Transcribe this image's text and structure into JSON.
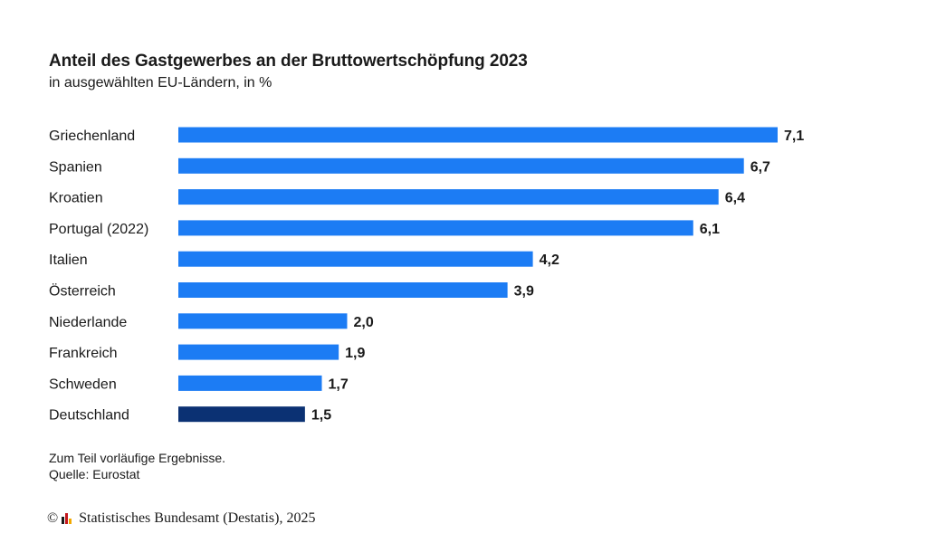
{
  "title": "Anteil des Gastgewerbes an der Bruttowertschöpfung 2023",
  "subtitle": "in ausgewählten EU-Ländern, in %",
  "chart_data": {
    "type": "bar",
    "orientation": "horizontal",
    "title": "Anteil des Gastgewerbes an der Bruttowertschöpfung 2023",
    "subtitle": "in ausgewählten EU-Ländern, in %",
    "categories": [
      "Griechenland",
      "Spanien",
      "Kroatien",
      "Portugal (2022)",
      "Italien",
      "Österreich",
      "Niederlande",
      "Frankreich",
      "Schweden",
      "Deutschland"
    ],
    "values": [
      7.1,
      6.7,
      6.4,
      6.1,
      4.2,
      3.9,
      2.0,
      1.9,
      1.7,
      1.5
    ],
    "value_labels": [
      "7,1",
      "6,7",
      "6,4",
      "6,1",
      "4,2",
      "3,9",
      "2,0",
      "1,9",
      "1,7",
      "1,5"
    ],
    "highlight": "Deutschland",
    "colors": {
      "default": "#1c7cf4",
      "highlight": "#0b3173"
    },
    "xlim": [
      0,
      7.1
    ],
    "grid": false,
    "xlabel": "",
    "ylabel": ""
  },
  "notes": {
    "line1": "Zum Teil vorläufige Ergebnisse.",
    "line2": "Quelle: Eurostat"
  },
  "footer": {
    "copyright_symbol": "©",
    "logo_icon": "destatis-logo-icon",
    "text": "Statistisches Bundesamt (Destatis), 2025"
  }
}
